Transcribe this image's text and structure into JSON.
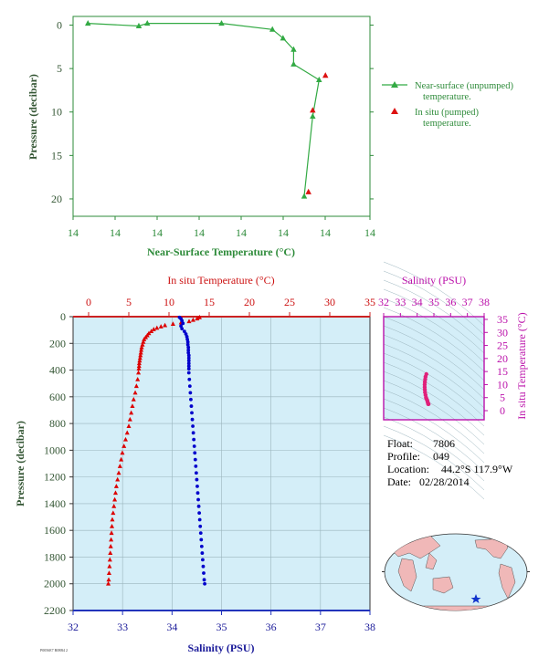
{
  "chart_data": [
    {
      "type": "line",
      "title": "",
      "xlabel": "Near-Surface Temperature (°C)",
      "ylabel": "Pressure (decibar)",
      "xticks": [
        "14",
        "14",
        "14",
        "14",
        "14",
        "14",
        "14",
        "14"
      ],
      "yticks": [
        "0",
        "5",
        "10",
        "15",
        "20"
      ],
      "xlim": [
        0,
        7
      ],
      "ylim": [
        22,
        -1
      ],
      "legend_position": "right",
      "series": [
        {
          "name": "Near-surface (unpumped) temperature.",
          "style": "green line with triangles",
          "points": [
            {
              "x": 0.35,
              "y": -0.2
            },
            {
              "x": 1.55,
              "y": 0.1
            },
            {
              "x": 1.75,
              "y": -0.2
            },
            {
              "x": 3.5,
              "y": -0.2
            },
            {
              "x": 4.7,
              "y": 0.5
            },
            {
              "x": 4.95,
              "y": 1.5
            },
            {
              "x": 5.2,
              "y": 2.8
            },
            {
              "x": 5.2,
              "y": 4.5
            },
            {
              "x": 5.8,
              "y": 6.3
            },
            {
              "x": 5.65,
              "y": 10.5
            },
            {
              "x": 5.45,
              "y": 19.7
            }
          ]
        },
        {
          "name": "In situ (pumped) temperature.",
          "style": "red triangles",
          "points": [
            {
              "x": 5.95,
              "y": 5.8
            },
            {
              "x": 5.65,
              "y": 9.8
            },
            {
              "x": 5.55,
              "y": 19.2
            }
          ]
        }
      ]
    },
    {
      "type": "scatter",
      "title": "",
      "ylabel": "Pressure (decibar)",
      "x_top_label": "In situ Temperature (°C)",
      "x_bottom_label": "Salinity (PSU)",
      "temperature_ticks": [
        "0",
        "5",
        "10",
        "15",
        "20",
        "25",
        "30",
        "35"
      ],
      "salinity_ticks": [
        "32",
        "33",
        "34",
        "35",
        "36",
        "37",
        "38"
      ],
      "pressure_ticks": [
        "0",
        "200",
        "400",
        "600",
        "800",
        "1000",
        "1200",
        "1400",
        "1600",
        "1800",
        "2000",
        "2200"
      ],
      "temperature_range": [
        -2,
        35
      ],
      "salinity_range": [
        32,
        38
      ],
      "pressure_range": [
        2200,
        0
      ],
      "series": [
        {
          "name": "In situ Temperature",
          "color": "#dd0000",
          "points": [
            [
              13.8,
              5
            ],
            [
              13.5,
              15
            ],
            [
              13.0,
              25
            ],
            [
              12.5,
              35
            ],
            [
              11.5,
              45
            ],
            [
              10.5,
              55
            ],
            [
              9.5,
              65
            ],
            [
              9.0,
              75
            ],
            [
              8.5,
              85
            ],
            [
              8.1,
              95
            ],
            [
              7.8,
              110
            ],
            [
              7.5,
              125
            ],
            [
              7.3,
              140
            ],
            [
              7.1,
              155
            ],
            [
              6.9,
              170
            ],
            [
              6.8,
              190
            ],
            [
              6.7,
              210
            ],
            [
              6.6,
              230
            ],
            [
              6.55,
              250
            ],
            [
              6.5,
              270
            ],
            [
              6.45,
              290
            ],
            [
              6.4,
              310
            ],
            [
              6.35,
              330
            ],
            [
              6.3,
              350
            ],
            [
              6.28,
              370
            ],
            [
              6.25,
              390
            ],
            [
              6.2,
              420
            ],
            [
              6.1,
              470
            ],
            [
              5.95,
              520
            ],
            [
              5.8,
              570
            ],
            [
              5.6,
              620
            ],
            [
              5.45,
              670
            ],
            [
              5.3,
              720
            ],
            [
              5.15,
              770
            ],
            [
              5.0,
              820
            ],
            [
              4.8,
              870
            ],
            [
              4.6,
              920
            ],
            [
              4.4,
              970
            ],
            [
              4.2,
              1020
            ],
            [
              4.05,
              1070
            ],
            [
              3.9,
              1120
            ],
            [
              3.75,
              1170
            ],
            [
              3.6,
              1220
            ],
            [
              3.45,
              1270
            ],
            [
              3.35,
              1320
            ],
            [
              3.25,
              1370
            ],
            [
              3.15,
              1420
            ],
            [
              3.05,
              1470
            ],
            [
              2.95,
              1520
            ],
            [
              2.9,
              1570
            ],
            [
              2.85,
              1620
            ],
            [
              2.8,
              1670
            ],
            [
              2.75,
              1720
            ],
            [
              2.7,
              1770
            ],
            [
              2.65,
              1820
            ],
            [
              2.6,
              1870
            ],
            [
              2.55,
              1920
            ],
            [
              2.5,
              1970
            ],
            [
              2.45,
              2000
            ]
          ]
        },
        {
          "name": "Salinity",
          "color": "#0000cc",
          "points": [
            [
              34.15,
              5
            ],
            [
              34.18,
              15
            ],
            [
              34.2,
              30
            ],
            [
              34.22,
              50
            ],
            [
              34.18,
              70
            ],
            [
              34.2,
              90
            ],
            [
              34.25,
              110
            ],
            [
              34.28,
              130
            ],
            [
              34.3,
              150
            ],
            [
              34.31,
              170
            ],
            [
              34.32,
              190
            ],
            [
              34.32,
              210
            ],
            [
              34.33,
              230
            ],
            [
              34.33,
              250
            ],
            [
              34.33,
              270
            ],
            [
              34.34,
              290
            ],
            [
              34.34,
              310
            ],
            [
              34.34,
              330
            ],
            [
              34.34,
              350
            ],
            [
              34.34,
              370
            ],
            [
              34.34,
              390
            ],
            [
              34.34,
              420
            ],
            [
              34.35,
              470
            ],
            [
              34.36,
              520
            ],
            [
              34.37,
              570
            ],
            [
              34.38,
              620
            ],
            [
              34.39,
              670
            ],
            [
              34.4,
              720
            ],
            [
              34.41,
              770
            ],
            [
              34.42,
              820
            ],
            [
              34.43,
              870
            ],
            [
              34.44,
              920
            ],
            [
              34.45,
              970
            ],
            [
              34.46,
              1020
            ],
            [
              34.47,
              1070
            ],
            [
              34.48,
              1120
            ],
            [
              34.49,
              1170
            ],
            [
              34.5,
              1220
            ],
            [
              34.51,
              1270
            ],
            [
              34.52,
              1320
            ],
            [
              34.53,
              1370
            ],
            [
              34.54,
              1420
            ],
            [
              34.55,
              1470
            ],
            [
              34.56,
              1520
            ],
            [
              34.57,
              1570
            ],
            [
              34.58,
              1620
            ],
            [
              34.59,
              1670
            ],
            [
              34.6,
              1720
            ],
            [
              34.61,
              1770
            ],
            [
              34.62,
              1820
            ],
            [
              34.63,
              1870
            ],
            [
              34.64,
              1920
            ],
            [
              34.65,
              1970
            ],
            [
              34.66,
              2000
            ]
          ]
        }
      ]
    },
    {
      "type": "scatter",
      "title": "",
      "x_top_label": "Salinity (PSU)",
      "ylabel": "In situ Temperature (°C)",
      "xticks": [
        "32",
        "33",
        "34",
        "35",
        "36",
        "37",
        "38"
      ],
      "yticks": [
        "0",
        "5",
        "10",
        "15",
        "20",
        "25",
        "30",
        "35"
      ],
      "xlim": [
        32,
        38
      ],
      "ylim": [
        -2,
        35
      ],
      "series": [
        {
          "name": "T-S",
          "color": "#e0207a",
          "points": [
            [
              34.55,
              14
            ],
            [
              34.5,
              13
            ],
            [
              34.48,
              12
            ],
            [
              34.46,
              11
            ],
            [
              34.45,
              10
            ],
            [
              34.45,
              9
            ],
            [
              34.46,
              8
            ],
            [
              34.47,
              7
            ],
            [
              34.5,
              6
            ],
            [
              34.53,
              5
            ],
            [
              34.56,
              4.5
            ],
            [
              34.6,
              4
            ],
            [
              34.62,
              3.5
            ],
            [
              34.64,
              3
            ],
            [
              34.66,
              2.5
            ],
            [
              34.68,
              2.5
            ]
          ]
        }
      ]
    }
  ],
  "info": {
    "float_label": "Float:",
    "float_value": "7806",
    "profile_label": "Profile:",
    "profile_value": "049",
    "location_label": "Location:",
    "location_value": "44.2°S  117.9°W",
    "date_label": "Date:",
    "date_value": "02/28/2014"
  },
  "footer_stamp": "P0056E7 R08B4 2"
}
